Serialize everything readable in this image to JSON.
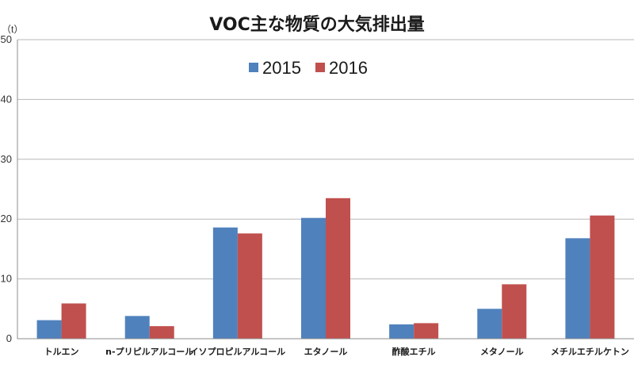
{
  "chart_data": {
    "type": "bar",
    "title": "VOC主な物質の大気排出量",
    "ylabel": "（t）",
    "xlabel": "",
    "ylim": [
      0,
      50
    ],
    "yticks": [
      0,
      10,
      20,
      30,
      40,
      50
    ],
    "grid": true,
    "legend_position": "top-center",
    "categories": [
      "トルエン",
      "n-プリピルアルコール",
      "イソプロピルアルコール",
      "エタノール",
      "酢酸エチル",
      "メタノール",
      "メチルエチルケトン"
    ],
    "series": [
      {
        "name": "2015",
        "color": "#4f81bd",
        "values": [
          3.1,
          3.8,
          18.6,
          20.2,
          2.4,
          5.0,
          16.8
        ]
      },
      {
        "name": "2016",
        "color": "#c0504d",
        "values": [
          5.9,
          2.1,
          17.6,
          23.5,
          2.6,
          9.1,
          20.6
        ]
      }
    ]
  }
}
